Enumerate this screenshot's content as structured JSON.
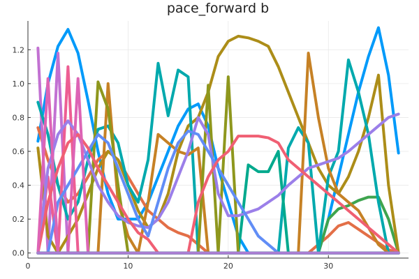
{
  "chart_data": {
    "type": "line",
    "title": "pace_forward b",
    "xlabel": "",
    "ylabel": "",
    "xlim": [
      0,
      38
    ],
    "ylim": [
      -0.03,
      1.37
    ],
    "xticks": [
      0,
      10,
      20,
      30
    ],
    "yticks": [
      0.0,
      0.2,
      0.4,
      0.6,
      0.8,
      1.0,
      1.2
    ],
    "ytick_labels": [
      "0.0",
      "0.2",
      "0.4",
      "0.6",
      "0.8",
      "1.0",
      "1.2"
    ],
    "grid": true,
    "legend": "none",
    "x": [
      1,
      2,
      3,
      4,
      5,
      6,
      7,
      8,
      9,
      10,
      11,
      12,
      13,
      14,
      15,
      16,
      17,
      18,
      19,
      20,
      21,
      22,
      23,
      24,
      25,
      26,
      27,
      28,
      29,
      30,
      31,
      32,
      33,
      34,
      35,
      36,
      37
    ],
    "series": [
      {
        "color": "#009AFA",
        "values": [
          0.66,
          1.0,
          1.22,
          1.32,
          1.18,
          0.9,
          0.6,
          0.35,
          0.2,
          0.2,
          0.2,
          0.3,
          0.45,
          0.6,
          0.75,
          0.85,
          0.88,
          0.75,
          0.5,
          0.3,
          0.1,
          0.0,
          0.0,
          0.0,
          0.0,
          0.0,
          0.0,
          0.0,
          0.0,
          0.2,
          0.45,
          0.7,
          0.95,
          1.16,
          1.33,
          1.05,
          0.59
        ]
      },
      {
        "color": "#E36F47",
        "values": [
          0.74,
          0.55,
          0.4,
          0.3,
          0.35,
          0.45,
          0.55,
          0.6,
          0.55,
          0.45,
          0.35,
          0.25,
          0.2,
          0.15,
          0.12,
          0.1,
          0.05,
          0.0,
          0.0,
          0.0,
          0.0,
          0.0,
          0.0,
          0.0,
          0.0,
          0.0,
          0.0,
          0.0,
          0.05,
          0.1,
          0.16,
          0.18,
          0.14,
          0.1,
          0.06,
          0.02,
          0.0
        ]
      },
      {
        "color": "#3EA44E",
        "values": [
          0.0,
          0.0,
          0.0,
          0.0,
          0.0,
          0.0,
          0.0,
          0.0,
          0.0,
          0.0,
          0.0,
          0.0,
          0.0,
          0.0,
          0.0,
          0.0,
          0.0,
          0.0,
          0.0,
          0.0,
          0.0,
          0.0,
          0.0,
          0.0,
          0.0,
          0.0,
          0.0,
          0.0,
          0.0,
          0.2,
          0.26,
          0.28,
          0.31,
          0.33,
          0.33,
          0.2,
          0.0
        ]
      },
      {
        "color": "#C271D2",
        "values": [
          1.21,
          0.0,
          1.18,
          0.0,
          0.0,
          0.0,
          0.0,
          0.0,
          0.0,
          0.0,
          0.0,
          0.0,
          0.0,
          0.0,
          0.0,
          0.0,
          0.0,
          0.0,
          0.0,
          0.0,
          0.0,
          0.0,
          0.0,
          0.0,
          0.0,
          0.0,
          0.0,
          0.0,
          0.0,
          0.0,
          0.0,
          0.0,
          0.0,
          0.0,
          0.0,
          0.0,
          0.0
        ]
      },
      {
        "color": "#AC8D18",
        "values": [
          0.62,
          0.1,
          0.0,
          0.1,
          0.2,
          0.35,
          0.5,
          0.6,
          0.55,
          0.4,
          0.25,
          0.15,
          0.2,
          0.35,
          0.6,
          0.75,
          0.8,
          0.95,
          1.16,
          1.25,
          1.28,
          1.27,
          1.25,
          1.22,
          1.1,
          0.95,
          0.8,
          0.65,
          0.5,
          0.4,
          0.35,
          0.45,
          0.6,
          0.8,
          1.05,
          0.4,
          0.0
        ]
      },
      {
        "color": "#00A9AD",
        "values": [
          0.89,
          0.7,
          0.4,
          0.2,
          0.3,
          0.55,
          0.73,
          0.75,
          0.65,
          0.4,
          0.3,
          0.55,
          1.12,
          0.81,
          1.08,
          1.04,
          0.0,
          0.0,
          0.0,
          0.0,
          0.0,
          0.0,
          0.0,
          0.0,
          0.0,
          0.62,
          0.74,
          0.65,
          0.0,
          0.45,
          0.6,
          1.14,
          0.95,
          0.7,
          0.3,
          0.0,
          0.0
        ]
      },
      {
        "color": "#ED5E93",
        "values": [
          0.0,
          0.45,
          0.0,
          1.1,
          0.0,
          0.0,
          0.0,
          0.0,
          0.0,
          0.0,
          0.0,
          0.0,
          0.0,
          0.0,
          0.0,
          0.0,
          0.0,
          0.0,
          0.0,
          0.0,
          0.0,
          0.0,
          0.0,
          0.0,
          0.0,
          0.0,
          0.0,
          0.0,
          0.0,
          0.0,
          0.0,
          0.0,
          0.0,
          0.0,
          0.0,
          0.0,
          0.0
        ]
      },
      {
        "color": "#C68125",
        "values": [
          0.0,
          0.0,
          0.0,
          0.0,
          0.0,
          0.0,
          0.0,
          1.0,
          0.3,
          0.1,
          0.0,
          0.3,
          0.7,
          0.65,
          0.6,
          0.58,
          0.62,
          0.0,
          0.0,
          0.0,
          0.0,
          0.0,
          0.0,
          0.0,
          0.0,
          0.0,
          0.0,
          1.18,
          0.8,
          0.5,
          0.35,
          0.3,
          0.25,
          0.15,
          0.05,
          0.0,
          0.0
        ]
      },
      {
        "color": "#00A98D",
        "values": [
          0.0,
          0.0,
          0.0,
          0.0,
          0.0,
          0.0,
          0.0,
          0.0,
          0.0,
          0.0,
          0.0,
          0.0,
          0.0,
          0.0,
          0.0,
          0.0,
          0.0,
          0.0,
          0.0,
          0.0,
          0.0,
          0.52,
          0.48,
          0.48,
          0.6,
          0.0,
          0.0,
          0.0,
          0.0,
          0.0,
          0.0,
          0.0,
          0.0,
          0.0,
          0.0,
          0.0,
          0.0
        ]
      },
      {
        "color": "#8E971D",
        "values": [
          0.0,
          0.0,
          0.0,
          0.0,
          0.0,
          0.0,
          1.01,
          0.85,
          0.4,
          0.0,
          0.0,
          0.0,
          0.0,
          0.0,
          0.0,
          0.0,
          0.0,
          0.99,
          0.0,
          1.04,
          0.0,
          0.0,
          0.0,
          0.0,
          0.0,
          0.0,
          0.0,
          0.0,
          0.0,
          0.0,
          0.0,
          0.0,
          0.0,
          0.0,
          0.0,
          0.0,
          0.0
        ]
      },
      {
        "color": "#00A6CD",
        "values": [
          0.0,
          0.0,
          0.0,
          0.0,
          0.0,
          0.0,
          0.0,
          0.0,
          0.0,
          0.0,
          0.0,
          0.0,
          0.0,
          0.0,
          0.0,
          0.0,
          0.0,
          0.0,
          0.0,
          0.0,
          0.0,
          0.0,
          0.0,
          0.0,
          0.0,
          0.0,
          0.0,
          0.0,
          0.0,
          0.0,
          0.0,
          0.0,
          0.0,
          0.0,
          0.0,
          0.0,
          0.0
        ]
      },
      {
        "color": "#9B7FE9",
        "values": [
          0.0,
          0.5,
          0.7,
          0.78,
          0.7,
          0.55,
          0.4,
          0.3,
          0.22,
          0.18,
          0.16,
          0.15,
          0.2,
          0.3,
          0.45,
          0.6,
          0.8,
          0.7,
          0.35,
          0.22,
          0.22,
          0.24,
          0.26,
          0.3,
          0.34,
          0.4,
          0.45,
          0.5,
          0.52,
          0.54,
          0.56,
          0.6,
          0.65,
          0.7,
          0.75,
          0.8,
          0.82
        ]
      },
      {
        "color": "#618DF6",
        "values": [
          0.0,
          0.0,
          0.3,
          0.4,
          0.5,
          0.6,
          0.7,
          0.65,
          0.5,
          0.35,
          0.2,
          0.1,
          0.3,
          0.5,
          0.65,
          0.72,
          0.7,
          0.6,
          0.5,
          0.4,
          0.3,
          0.2,
          0.1,
          0.05,
          0.0,
          0.0,
          0.0,
          0.0,
          0.0,
          0.0,
          0.0,
          0.0,
          0.0,
          0.0,
          0.0,
          0.0,
          0.0
        ]
      },
      {
        "color": "#F05F73",
        "values": [
          0.0,
          0.3,
          0.5,
          0.65,
          0.7,
          0.62,
          0.5,
          0.4,
          0.3,
          0.2,
          0.12,
          0.08,
          0.0,
          0.0,
          0.0,
          0.0,
          0.3,
          0.45,
          0.55,
          0.6,
          0.69,
          0.69,
          0.69,
          0.68,
          0.65,
          0.55,
          0.5,
          0.45,
          0.4,
          0.35,
          0.3,
          0.25,
          0.2,
          0.15,
          0.1,
          0.05,
          0.0
        ]
      },
      {
        "color": "#DD64B5",
        "values": [
          0.0,
          1.03,
          0.0,
          0.0,
          1.03,
          0.0,
          0.0,
          0.0,
          0.0,
          0.0,
          0.0,
          0.0,
          0.0,
          0.0,
          0.0,
          0.0,
          0.0,
          0.0,
          0.0,
          0.0,
          0.0,
          0.0,
          0.0,
          0.0,
          0.0,
          0.0,
          0.0,
          0.0,
          0.0,
          0.0,
          0.0,
          0.0,
          0.0,
          0.0,
          0.0,
          0.0,
          0.0
        ]
      },
      {
        "color": "#6B9D29",
        "values": [
          0.0,
          0.0,
          0.0,
          0.0,
          0.0,
          0.0,
          0.0,
          0.0,
          0.0,
          0.0,
          0.0,
          0.0,
          0.0,
          0.0,
          0.0,
          0.0,
          0.0,
          0.0,
          0.0,
          0.0,
          0.0,
          0.0,
          0.0,
          0.0,
          0.0,
          0.0,
          0.0,
          0.0,
          0.0,
          0.0,
          0.0,
          0.0,
          0.0,
          0.0,
          0.0,
          0.0,
          0.0
        ]
      },
      {
        "color": "#00A8B5",
        "values": [
          0.0,
          0.0,
          0.0,
          0.0,
          0.0,
          0.0,
          0.0,
          0.0,
          0.0,
          0.0,
          0.0,
          0.0,
          0.0,
          0.0,
          0.0,
          0.0,
          0.0,
          0.0,
          0.0,
          0.0,
          0.0,
          0.0,
          0.0,
          0.0,
          0.0,
          0.0,
          0.0,
          0.0,
          0.0,
          0.0,
          0.0,
          0.0,
          0.0,
          0.0,
          0.0,
          0.0,
          0.0
        ]
      },
      {
        "color": "#AB7ED3",
        "values": [
          0.0,
          0.0,
          0.0,
          0.0,
          0.0,
          0.0,
          0.0,
          0.0,
          0.0,
          0.0,
          0.0,
          0.0,
          0.0,
          0.0,
          0.0,
          0.0,
          0.0,
          0.0,
          0.0,
          0.0,
          0.0,
          0.0,
          0.0,
          0.0,
          0.0,
          0.0,
          0.0,
          0.0,
          0.0,
          0.0,
          0.0,
          0.0,
          0.0,
          0.0,
          0.0,
          0.0,
          0.0
        ]
      }
    ]
  }
}
